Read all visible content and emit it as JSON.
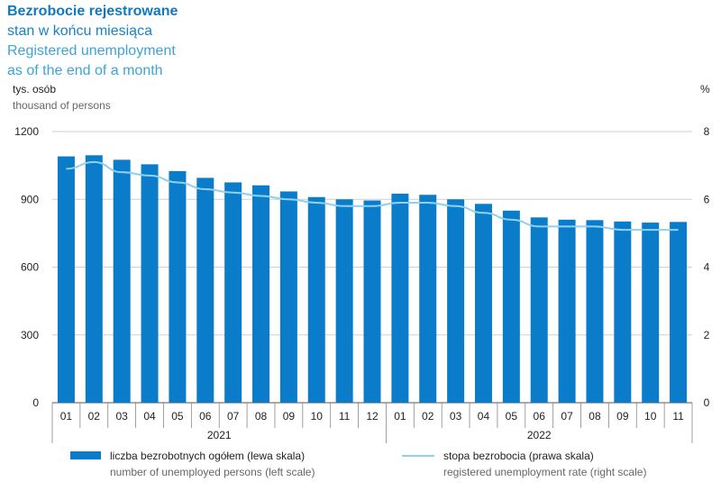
{
  "title": {
    "main": "Bezrobocie rejestrowane",
    "sub_pl": "stan w końcu miesiąca",
    "sub_en_1": "Registered unemployment",
    "sub_en_2": "as of the end of a month"
  },
  "left_axis": {
    "unit_pl": "tys. osób",
    "unit_en": "thousand of persons"
  },
  "right_axis": {
    "unit": "%"
  },
  "legend": {
    "bars_pl": "liczba bezrobotnych ogółem (lewa skala)",
    "bars_en": "number of unemployed persons (left scale)",
    "line_pl": "stopa bezrobocia (prawa skala)",
    "line_en": "registered unemployment rate (right scale)"
  },
  "colors": {
    "bar": "#0b7cc9",
    "line": "#8fd1ee",
    "title": "#0e7ac2"
  },
  "chart_data": {
    "type": "bar",
    "categories": [
      "01",
      "02",
      "03",
      "04",
      "05",
      "06",
      "07",
      "08",
      "09",
      "10",
      "11",
      "12",
      "01",
      "02",
      "03",
      "04",
      "05",
      "06",
      "07",
      "08",
      "09",
      "10",
      "11"
    ],
    "year_groups": [
      {
        "label": "2021",
        "count": 12
      },
      {
        "label": "2022",
        "count": 11
      }
    ],
    "series": [
      {
        "name": "liczba bezrobotnych ogółem (lewa skala)",
        "axis": "left",
        "type": "bar",
        "values": [
          1090,
          1095,
          1075,
          1055,
          1025,
          995,
          975,
          962,
          935,
          910,
          900,
          895,
          925,
          920,
          900,
          880,
          850,
          820,
          810,
          808,
          802,
          797,
          800
        ]
      },
      {
        "name": "stopa bezrobocia (prawa skala)",
        "axis": "right",
        "type": "line",
        "values": [
          6.9,
          7.1,
          6.8,
          6.7,
          6.5,
          6.3,
          6.2,
          6.1,
          6.0,
          5.9,
          5.8,
          5.8,
          5.9,
          5.9,
          5.8,
          5.6,
          5.4,
          5.2,
          5.2,
          5.2,
          5.1,
          5.1,
          5.1
        ]
      }
    ],
    "y_left": {
      "min": 0,
      "max": 1200,
      "ticks": [
        0,
        300,
        600,
        900,
        1200
      ]
    },
    "y_right": {
      "min": 0,
      "max": 8,
      "ticks": [
        0,
        2,
        4,
        6,
        8
      ]
    },
    "grid": true
  }
}
